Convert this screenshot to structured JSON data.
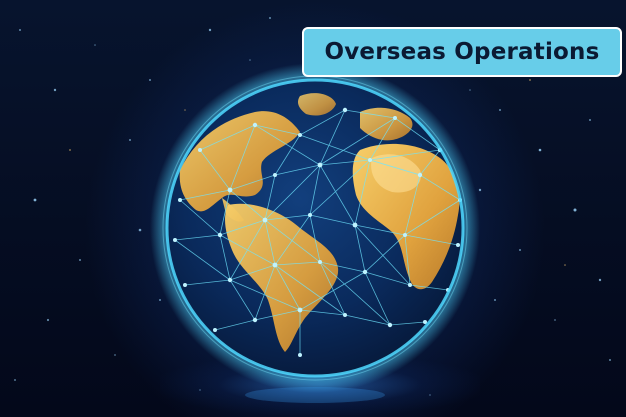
{
  "badge": {
    "title": "Overseas Operations",
    "background_color": "#67cde9",
    "border_color": "#ffffff",
    "text_color": "#0b1a33"
  },
  "scene": {
    "subject": "network-globe",
    "glow_color": "#4fd8ff",
    "land_color": "#f1b44a",
    "ocean_color": "#0a2a5c"
  }
}
